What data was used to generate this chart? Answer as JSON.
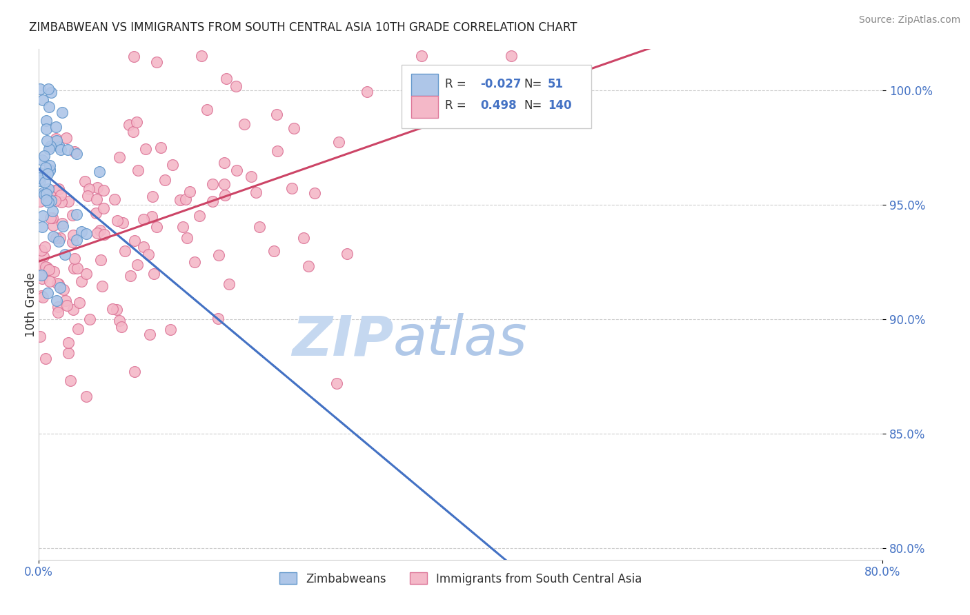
{
  "title": "ZIMBABWEAN VS IMMIGRANTS FROM SOUTH CENTRAL ASIA 10TH GRADE CORRELATION CHART",
  "source": "Source: ZipAtlas.com",
  "ylabel": "10th Grade",
  "xlim": [
    0.0,
    0.8
  ],
  "ylim": [
    0.795,
    1.018
  ],
  "yticks": [
    0.8,
    0.85,
    0.9,
    0.95,
    1.0
  ],
  "ytick_labels": [
    "80.0%",
    "85.0%",
    "90.0%",
    "95.0%",
    "100.0%"
  ],
  "xticks": [
    0.0,
    0.8
  ],
  "xtick_labels": [
    "0.0%",
    "80.0%"
  ],
  "series1_name": "Zimbabweans",
  "series1_color": "#aec6e8",
  "series1_edge": "#6699cc",
  "series1_R": -0.027,
  "series1_N": 51,
  "series2_name": "Immigrants from South Central Asia",
  "series2_color": "#f4b8c8",
  "series2_edge": "#dd7799",
  "series2_R": 0.498,
  "series2_N": 140,
  "trend1_color": "#4472c4",
  "trend2_color": "#cc4466",
  "watermark_ZIP": "ZIP",
  "watermark_atlas": "atlas",
  "watermark_color_ZIP": "#c5d8ee",
  "watermark_color_atlas": "#b8cce4",
  "legend_R1_val": "-0.027",
  "legend_N1_val": "51",
  "legend_R2_val": "0.498",
  "legend_N2_val": "140",
  "background_color": "#ffffff",
  "grid_color": "#cccccc",
  "tick_color": "#4472c4",
  "title_color": "#222222",
  "source_color": "#888888"
}
